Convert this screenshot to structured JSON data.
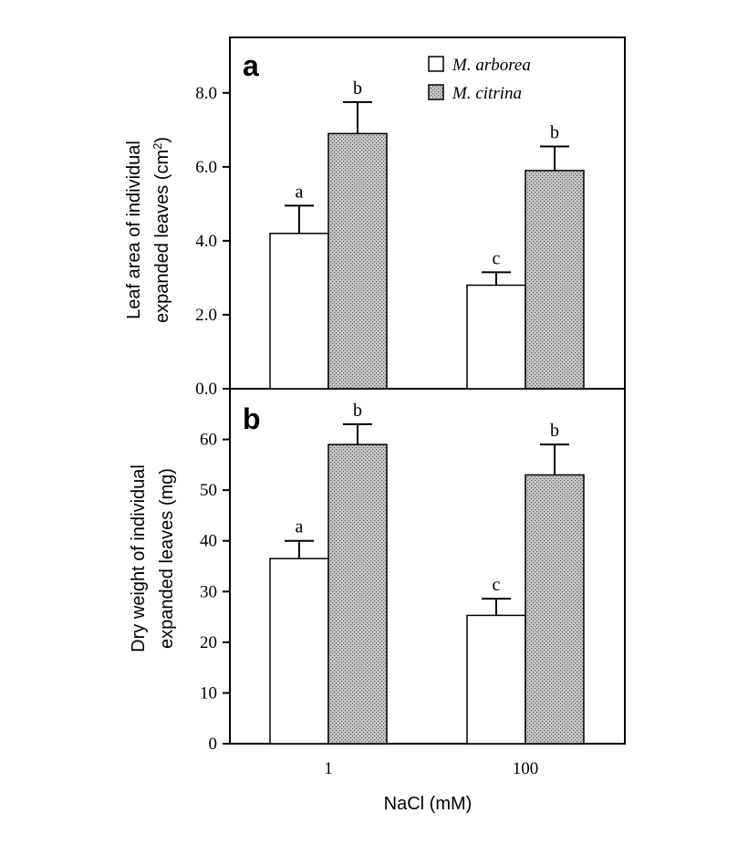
{
  "chart_data": [
    {
      "type": "bar",
      "panel_label": "a",
      "categories": [
        "1",
        "100"
      ],
      "series": [
        {
          "name": "M. arborea",
          "values": [
            4.2,
            2.8
          ],
          "errors": [
            0.75,
            0.35
          ],
          "letters": [
            "a",
            "c"
          ],
          "fill": "white"
        },
        {
          "name": "M. citrina",
          "values": [
            6.9,
            5.9
          ],
          "errors": [
            0.85,
            0.65
          ],
          "letters": [
            "b",
            "b"
          ],
          "fill": "stippled"
        }
      ],
      "ylabel_line1": "Leaf area of individual",
      "ylabel_line2": "expanded leaves (cm",
      "ylabel_sup": "2",
      "ylabel_close": ")",
      "ylim": [
        0,
        9.5
      ],
      "yticks": [
        "0.0",
        "2.0",
        "4.0",
        "6.0",
        "8.0"
      ],
      "ytick_values": [
        0,
        2,
        4,
        6,
        8
      ],
      "legend": "top-right"
    },
    {
      "type": "bar",
      "panel_label": "b",
      "categories": [
        "1",
        "100"
      ],
      "series": [
        {
          "name": "M. arborea",
          "values": [
            36.5,
            25.3
          ],
          "errors": [
            3.5,
            3.3
          ],
          "letters": [
            "a",
            "c"
          ],
          "fill": "white"
        },
        {
          "name": "M. citrina",
          "values": [
            59,
            53
          ],
          "errors": [
            4,
            6
          ],
          "letters": [
            "b",
            "b"
          ],
          "fill": "stippled"
        }
      ],
      "ylabel_line1": "Dry weight of individual",
      "ylabel_line2": "expanded leaves (mg)",
      "ylim": [
        0,
        70
      ],
      "yticks": [
        "0",
        "10",
        "20",
        "30",
        "40",
        "50",
        "60"
      ],
      "ytick_values": [
        0,
        10,
        20,
        30,
        40,
        50,
        60
      ],
      "xlabel": "NaCl (mM)"
    }
  ],
  "legend": {
    "items": [
      "M. arborea",
      "M. citrina"
    ]
  },
  "colors": {
    "bar_white": "#ffffff",
    "stipple_base": "#c8c8c8",
    "stipple_dot": "#555555",
    "background": "#ffffff",
    "outline": "#000000"
  }
}
